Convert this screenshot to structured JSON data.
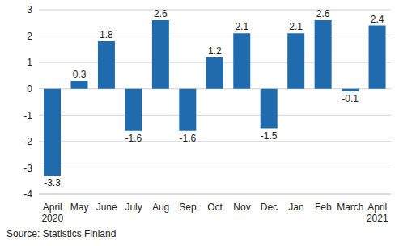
{
  "chart_data": {
    "type": "bar",
    "categories": [
      "April 2020",
      "May",
      "June",
      "July",
      "Aug",
      "Sep",
      "Oct",
      "Nov",
      "Dec",
      "Jan",
      "Feb",
      "March",
      "April 2021"
    ],
    "values": [
      -3.3,
      0.3,
      1.8,
      -1.6,
      2.6,
      -1.6,
      1.2,
      2.1,
      -1.5,
      2.1,
      2.6,
      -0.1,
      2.4
    ],
    "color": "#1f6bae",
    "ylim": [
      -4,
      3
    ],
    "yticks": [
      -4,
      -3,
      -2,
      -1,
      0,
      1,
      2,
      3
    ],
    "grid": true,
    "data_labels": true,
    "annotations": [
      "Source: Statistics Finland"
    ]
  }
}
